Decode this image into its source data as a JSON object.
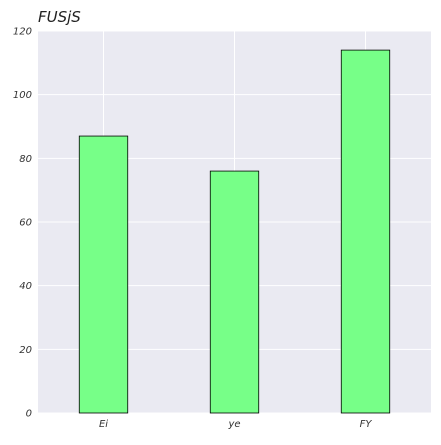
{
  "chart_data": {
    "type": "bar",
    "title": "FUSjS",
    "xlabel": "",
    "ylabel": "",
    "categories": [
      "Ei",
      "ye",
      "FY"
    ],
    "values": [
      87,
      76,
      114
    ],
    "ylim": [
      0,
      120
    ],
    "yticks": [
      0,
      20,
      40,
      60,
      80,
      100,
      120
    ],
    "grid": true,
    "legend": "none",
    "colors": {
      "bar_fill": "#77ff88",
      "bar_edge": "#000000",
      "plot_background": "#eaeaf2",
      "grid": "#ffffff"
    }
  }
}
